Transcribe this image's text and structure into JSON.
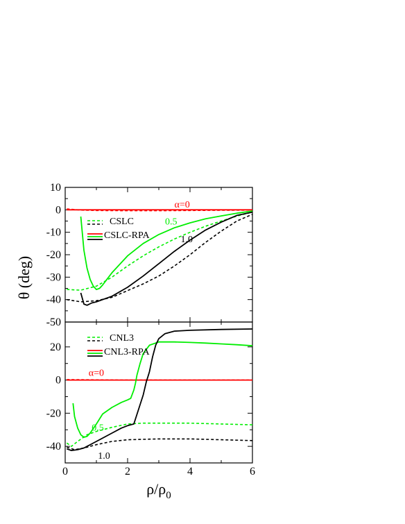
{
  "chart_data": {
    "type": "line",
    "ylabel": "θ (deg)",
    "xlabel": "ρ/ρ0",
    "xlim": [
      0,
      6
    ],
    "xticks": [
      0,
      2,
      4,
      6
    ],
    "colors": {
      "red": "#ff0000",
      "green": "#00ee00",
      "black": "#000000"
    },
    "panels": [
      {
        "ylim": [
          -50,
          10
        ],
        "yticks": [
          10,
          0,
          -10,
          -20,
          -30,
          -40,
          -50
        ],
        "legend": [
          "CSLC",
          "CSLC-RPA"
        ],
        "annotations": [
          {
            "text": "α=0",
            "color": "red",
            "x": 3.5,
            "y": 1.0
          },
          {
            "text": "0.5",
            "color": "green",
            "x": 3.2,
            "y": -6.5
          },
          {
            "text": "1.0",
            "color": "black",
            "x": 3.7,
            "y": -14.5
          }
        ],
        "series": [
          {
            "alpha": "0",
            "model": "CSLC",
            "color": "red",
            "style": "dashed",
            "x": [
              0.05,
              0.5,
              1,
              2,
              3,
              4,
              5,
              6
            ],
            "y": [
              0.4,
              -0.1,
              -0.3,
              -0.4,
              -0.4,
              -0.3,
              -0.2,
              -0.1
            ]
          },
          {
            "alpha": "0",
            "model": "CSLC-RPA",
            "color": "red",
            "style": "solid",
            "x": [
              0.05,
              0.5,
              1,
              2,
              3,
              4,
              5,
              6
            ],
            "y": [
              0,
              0,
              0,
              0,
              0,
              0,
              0,
              0
            ]
          },
          {
            "alpha": "0.5",
            "model": "CSLC",
            "color": "green",
            "style": "dashed",
            "x": [
              0.05,
              0.5,
              1,
              1.5,
              2,
              2.5,
              3,
              3.5,
              4,
              4.5,
              5,
              5.5,
              6
            ],
            "y": [
              -35.5,
              -35.8,
              -34,
              -30,
              -25,
              -20.5,
              -16.5,
              -13,
              -10,
              -7.3,
              -5,
              -2.8,
              -1
            ]
          },
          {
            "alpha": "0.5",
            "model": "CSLC-RPA",
            "color": "green",
            "style": "solid",
            "x": [
              0.5,
              0.6,
              0.7,
              0.8,
              0.9,
              1.0,
              1.1,
              1.2,
              1.5,
              2,
              2.5,
              3,
              3.5,
              4,
              4.5,
              5,
              5.5,
              6
            ],
            "y": [
              -3,
              -18,
              -26,
              -31,
              -34,
              -35.5,
              -35,
              -33.5,
              -28,
              -20.5,
              -15,
              -11,
              -8,
              -5.8,
              -4,
              -2.7,
              -1.5,
              -0.5
            ]
          },
          {
            "alpha": "1.0",
            "model": "CSLC",
            "color": "black",
            "style": "dashed",
            "x": [
              0.05,
              0.5,
              1,
              1.5,
              2,
              2.5,
              3,
              3.5,
              4,
              4.5,
              5,
              5.5,
              6
            ],
            "y": [
              -40,
              -41,
              -40.5,
              -39,
              -36,
              -33,
              -29.5,
              -25,
              -20,
              -14.5,
              -9.5,
              -5,
              -2
            ]
          },
          {
            "alpha": "1.0",
            "model": "CSLC-RPA",
            "color": "black",
            "style": "solid",
            "x": [
              0.5,
              0.6,
              0.7,
              0.85,
              1,
              1.5,
              2,
              2.5,
              3,
              3.5,
              4,
              4.5,
              5,
              5.5,
              6
            ],
            "y": [
              -37,
              -42,
              -42.5,
              -41.5,
              -41,
              -38.5,
              -34.5,
              -29.5,
              -24,
              -18.5,
              -13.5,
              -9,
              -5.5,
              -2.5,
              -1
            ]
          }
        ]
      },
      {
        "ylim": [
          -50,
          35
        ],
        "yticks": [
          20,
          0,
          -20,
          -40
        ],
        "legend": [
          "CNL3",
          "CNL3-RPA"
        ],
        "annotations": [
          {
            "text": "α=0",
            "color": "red",
            "x": 0.75,
            "y": 2.5
          },
          {
            "text": "0.5",
            "color": "green",
            "x": 0.85,
            "y": -30.5
          },
          {
            "text": "1.0",
            "color": "black",
            "x": 1.05,
            "y": -47.5
          }
        ],
        "series": [
          {
            "alpha": "0",
            "model": "CNL3",
            "color": "red",
            "style": "dashed",
            "x": [
              0.05,
              1,
              2,
              3,
              4,
              5,
              6
            ],
            "y": [
              0.3,
              0.1,
              0,
              0,
              0,
              0,
              0
            ]
          },
          {
            "alpha": "0",
            "model": "CNL3-RPA",
            "color": "red",
            "style": "solid",
            "x": [
              0.05,
              1,
              2,
              3,
              4,
              5,
              6
            ],
            "y": [
              0,
              0,
              0,
              0,
              0,
              0,
              0
            ]
          },
          {
            "alpha": "0.5",
            "model": "CNL3",
            "color": "green",
            "style": "dashed",
            "x": [
              0.05,
              0.2,
              0.4,
              0.7,
              1,
              1.5,
              2,
              2.5,
              3,
              4,
              5,
              6
            ],
            "y": [
              -38,
              -40,
              -37,
              -33,
              -31,
              -28.5,
              -26.5,
              -26,
              -26,
              -26,
              -26.5,
              -27
            ]
          },
          {
            "alpha": "0.5",
            "model": "CNL3-RPA",
            "color": "green",
            "style": "solid",
            "x": [
              0.25,
              0.3,
              0.4,
              0.5,
              0.6,
              0.7,
              0.8,
              1.0,
              1.2,
              1.5,
              1.8,
              2.0,
              2.1,
              2.2,
              2.25,
              2.3,
              2.4,
              2.5,
              2.7,
              3,
              3.5,
              4,
              4.5,
              5,
              5.5,
              6
            ],
            "y": [
              -14,
              -22,
              -29,
              -33,
              -34.5,
              -34,
              -32,
              -26.5,
              -20.5,
              -16.5,
              -13.5,
              -12,
              -11,
              -6,
              -2,
              3,
              10,
              16,
              21,
              23,
              23,
              22.7,
              22.3,
              21.8,
              21.3,
              20.7
            ]
          },
          {
            "alpha": "1.0",
            "model": "CNL3",
            "color": "black",
            "style": "dashed",
            "x": [
              0.05,
              0.3,
              0.6,
              1,
              1.5,
              2,
              3,
              4,
              5,
              6
            ],
            "y": [
              -40.5,
              -42,
              -41,
              -39,
              -37,
              -36,
              -35.5,
              -35.5,
              -36,
              -36.5
            ]
          },
          {
            "alpha": "1.0",
            "model": "CNL3-RPA",
            "color": "black",
            "style": "solid",
            "x": [
              0.05,
              0.2,
              0.4,
              0.6,
              1.0,
              1.5,
              1.8,
              2.0,
              2.2,
              2.5,
              2.6,
              2.65,
              2.7,
              2.8,
              2.9,
              3.0,
              3.2,
              3.5,
              4,
              5,
              6
            ],
            "y": [
              -41.5,
              -42.5,
              -42,
              -41,
              -37,
              -32,
              -29,
              -27.5,
              -26.5,
              -9,
              -1,
              2,
              5,
              14,
              21,
              25,
              28,
              29.5,
              30,
              30.5,
              30.8
            ]
          }
        ]
      }
    ]
  }
}
